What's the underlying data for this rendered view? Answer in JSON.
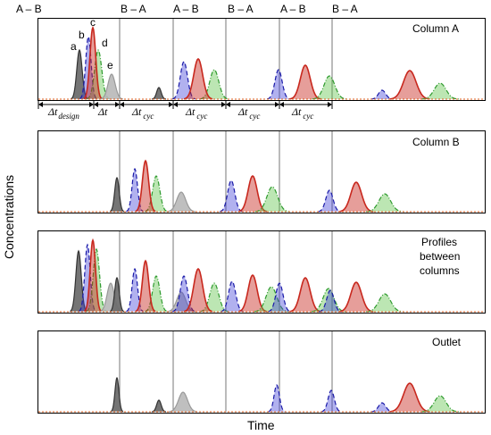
{
  "header_labels": [
    "A – B",
    "B – A",
    "A – B",
    "B – A",
    "A – B",
    "B – A"
  ],
  "panel_labels": {
    "column_a": "Column A",
    "column_b": "Column B",
    "between_line1": "Profiles",
    "between_line2": "between",
    "between_line3": "columns",
    "outlet": "Outlet"
  },
  "peak_letters": [
    "a",
    "b",
    "c",
    "d",
    "e"
  ],
  "delta_labels": [
    {
      "main": "Δt",
      "sub": "design"
    },
    {
      "main": "Δt",
      "sub": ""
    },
    {
      "main": "Δt",
      "sub": "cyc"
    },
    {
      "main": "Δt",
      "sub": "cyc"
    },
    {
      "main": "Δt",
      "sub": "cyc"
    },
    {
      "main": "Δt",
      "sub": "cyc"
    }
  ],
  "axes": {
    "y_label": "Concentrations",
    "x_label": "Time"
  },
  "colors": {
    "a": "#6e6e6e",
    "b": "#3b3bd6",
    "c": "#c8281e",
    "d": "#58c040",
    "e": "#b8b8b8",
    "axis_line": "#e06020"
  }
}
